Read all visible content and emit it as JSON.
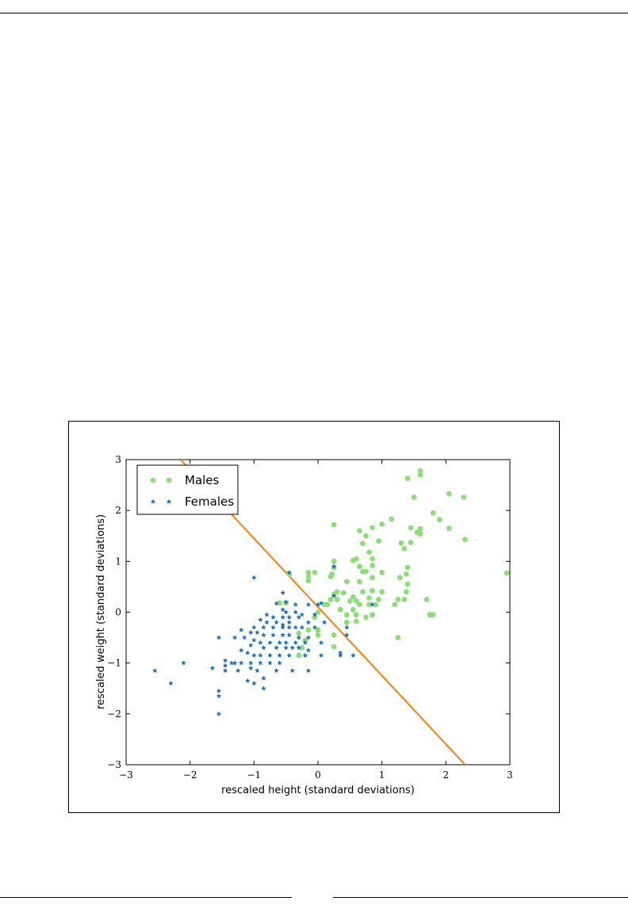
{
  "chart_data": {
    "type": "scatter",
    "xlabel": "rescaled height (standard deviations)",
    "ylabel": "rescaled weight (standard deviations)",
    "xlim": [
      -3,
      3
    ],
    "ylim": [
      -3,
      3
    ],
    "xticks": [
      "−3",
      "−2",
      "−1",
      "0",
      "1",
      "2",
      "3"
    ],
    "yticks": [
      "3",
      "2",
      "1",
      "0",
      "−1",
      "−2",
      "−3"
    ],
    "grid": false,
    "legend_position": "top-left",
    "series": [
      {
        "name": "Males",
        "marker": "circle",
        "color": "#8fdc7a",
        "points": [
          [
            1.6,
            2.78
          ],
          [
            1.6,
            2.7
          ],
          [
            1.4,
            2.63
          ],
          [
            1.5,
            2.26
          ],
          [
            2.05,
            2.33
          ],
          [
            2.28,
            2.26
          ],
          [
            1.8,
            1.95
          ],
          [
            1.9,
            1.82
          ],
          [
            1.15,
            1.83
          ],
          [
            1.0,
            1.73
          ],
          [
            1.45,
            1.66
          ],
          [
            1.6,
            1.64
          ],
          [
            1.55,
            1.57
          ],
          [
            1.6,
            1.54
          ],
          [
            2.05,
            1.65
          ],
          [
            2.3,
            1.43
          ],
          [
            0.25,
            1.72
          ],
          [
            0.65,
            1.6
          ],
          [
            0.85,
            1.66
          ],
          [
            0.75,
            1.5
          ],
          [
            0.95,
            1.4
          ],
          [
            0.7,
            1.35
          ],
          [
            1.3,
            1.36
          ],
          [
            1.45,
            1.37
          ],
          [
            1.35,
            1.25
          ],
          [
            0.55,
            1.02
          ],
          [
            0.6,
            1.05
          ],
          [
            0.85,
            1.05
          ],
          [
            0.8,
            1.18
          ],
          [
            0.65,
            0.9
          ],
          [
            0.7,
            0.8
          ],
          [
            0.75,
            0.8
          ],
          [
            1.0,
            0.78
          ],
          [
            1.4,
            0.88
          ],
          [
            1.38,
            0.75
          ],
          [
            1.28,
            0.68
          ],
          [
            0.25,
            1.0
          ],
          [
            0.25,
            0.88
          ],
          [
            0.22,
            0.75
          ],
          [
            0.85,
            0.92
          ],
          [
            0.85,
            0.68
          ],
          [
            0.45,
            0.6
          ],
          [
            0.65,
            0.6
          ],
          [
            1.4,
            0.55
          ],
          [
            2.95,
            0.77
          ],
          [
            -0.15,
            0.78
          ],
          [
            -0.15,
            0.7
          ],
          [
            -0.05,
            0.78
          ],
          [
            -0.45,
            0.75
          ],
          [
            -0.15,
            0.62
          ],
          [
            0.2,
            0.7
          ],
          [
            0.3,
            0.4
          ],
          [
            0.4,
            0.38
          ],
          [
            0.55,
            0.3
          ],
          [
            0.7,
            0.4
          ],
          [
            0.85,
            0.42
          ],
          [
            1.0,
            0.4
          ],
          [
            1.38,
            0.4
          ],
          [
            0.25,
            0.35
          ],
          [
            0.2,
            0.25
          ],
          [
            0.3,
            0.25
          ],
          [
            0.5,
            0.22
          ],
          [
            0.6,
            0.22
          ],
          [
            0.8,
            0.28
          ],
          [
            0.95,
            0.25
          ],
          [
            1.25,
            0.25
          ],
          [
            1.35,
            0.25
          ],
          [
            1.7,
            0.25
          ],
          [
            -0.6,
            0.18
          ],
          [
            -0.5,
            0.18
          ],
          [
            0.1,
            0.15
          ],
          [
            0.15,
            0.15
          ],
          [
            0.35,
            0.05
          ],
          [
            0.55,
            0.05
          ],
          [
            0.65,
            0.15
          ],
          [
            0.8,
            0.15
          ],
          [
            0.9,
            0.15
          ],
          [
            1.2,
            0.15
          ],
          [
            0.0,
            0.0
          ],
          [
            0.45,
            -0.05
          ],
          [
            0.6,
            -0.05
          ],
          [
            0.75,
            -0.1
          ],
          [
            0.85,
            -0.05
          ],
          [
            1.75,
            -0.05
          ],
          [
            -0.05,
            -0.1
          ],
          [
            0.45,
            -0.2
          ],
          [
            0.6,
            -0.18
          ],
          [
            1.8,
            -0.05
          ],
          [
            1.25,
            -0.5
          ],
          [
            -0.15,
            -0.35
          ],
          [
            0.0,
            -0.35
          ],
          [
            -0.3,
            -0.42
          ],
          [
            -0.2,
            -0.55
          ],
          [
            0.25,
            -0.45
          ],
          [
            0.0,
            -0.45
          ],
          [
            -0.25,
            -0.7
          ],
          [
            0.25,
            -0.68
          ],
          [
            -0.3,
            -0.85
          ]
        ]
      },
      {
        "name": "Females",
        "marker": "star",
        "color": "#1f6fb4",
        "points": [
          [
            -0.45,
            0.78
          ],
          [
            -1.0,
            0.68
          ],
          [
            -0.55,
            0.38
          ],
          [
            -0.65,
            0.17
          ],
          [
            -0.5,
            0.2
          ],
          [
            -0.35,
            0.15
          ],
          [
            -0.55,
            0.05
          ],
          [
            -0.5,
            0.0
          ],
          [
            -0.35,
            0.0
          ],
          [
            -0.25,
            -0.05
          ],
          [
            -0.8,
            -0.05
          ],
          [
            -0.7,
            -0.1
          ],
          [
            -0.55,
            -0.1
          ],
          [
            -0.45,
            -0.1
          ],
          [
            -0.3,
            -0.1
          ],
          [
            -0.05,
            -0.05
          ],
          [
            0.0,
            0.15
          ],
          [
            -0.15,
            0.15
          ],
          [
            -0.9,
            -0.15
          ],
          [
            -0.8,
            -0.2
          ],
          [
            -0.65,
            -0.2
          ],
          [
            -0.45,
            -0.2
          ],
          [
            -0.55,
            -0.25
          ],
          [
            -0.15,
            -0.2
          ],
          [
            0.1,
            -0.2
          ],
          [
            -1.0,
            -0.3
          ],
          [
            -0.85,
            -0.3
          ],
          [
            -0.7,
            -0.3
          ],
          [
            -0.55,
            -0.3
          ],
          [
            -0.45,
            -0.3
          ],
          [
            -0.35,
            -0.3
          ],
          [
            -0.25,
            -0.3
          ],
          [
            -0.05,
            -0.3
          ],
          [
            -1.2,
            -0.35
          ],
          [
            -1.05,
            -0.4
          ],
          [
            -0.95,
            -0.4
          ],
          [
            -0.85,
            -0.45
          ],
          [
            -0.7,
            -0.45
          ],
          [
            -0.55,
            -0.45
          ],
          [
            -0.45,
            -0.45
          ],
          [
            -0.3,
            -0.5
          ],
          [
            -0.15,
            -0.5
          ],
          [
            -1.55,
            -0.5
          ],
          [
            -1.3,
            -0.5
          ],
          [
            -1.15,
            -0.5
          ],
          [
            -1.0,
            -0.55
          ],
          [
            -0.9,
            -0.6
          ],
          [
            -0.75,
            -0.6
          ],
          [
            -0.6,
            -0.6
          ],
          [
            -0.5,
            -0.6
          ],
          [
            -0.35,
            -0.6
          ],
          [
            -0.2,
            -0.6
          ],
          [
            0.05,
            -0.6
          ],
          [
            -1.05,
            -0.65
          ],
          [
            -0.85,
            -0.7
          ],
          [
            -0.65,
            -0.7
          ],
          [
            -0.5,
            -0.7
          ],
          [
            -0.4,
            -0.7
          ],
          [
            -0.3,
            -0.7
          ],
          [
            -0.15,
            -0.75
          ],
          [
            -1.2,
            -0.75
          ],
          [
            -1.1,
            -0.8
          ],
          [
            -1.0,
            -0.85
          ],
          [
            -0.9,
            -0.85
          ],
          [
            -0.75,
            -0.85
          ],
          [
            -0.6,
            -0.85
          ],
          [
            -0.45,
            -0.85
          ],
          [
            -0.2,
            -0.85
          ],
          [
            0.05,
            -0.85
          ],
          [
            0.35,
            -0.8
          ],
          [
            0.35,
            -0.85
          ],
          [
            -1.45,
            -0.95
          ],
          [
            -1.3,
            -1.0
          ],
          [
            -1.2,
            -1.0
          ],
          [
            -1.05,
            -1.0
          ],
          [
            -0.9,
            -1.0
          ],
          [
            -0.75,
            -1.0
          ],
          [
            -0.6,
            -1.0
          ],
          [
            -1.45,
            -1.05
          ],
          [
            -1.35,
            -1.0
          ],
          [
            -1.65,
            -1.1
          ],
          [
            -1.45,
            -1.15
          ],
          [
            -1.25,
            -1.15
          ],
          [
            -1.05,
            -1.1
          ],
          [
            -0.95,
            -1.15
          ],
          [
            -0.65,
            -1.15
          ],
          [
            -0.4,
            -1.15
          ],
          [
            -0.15,
            -1.15
          ],
          [
            -2.55,
            -1.15
          ],
          [
            -2.1,
            -1.0
          ],
          [
            -1.55,
            -1.55
          ],
          [
            -1.55,
            -1.65
          ],
          [
            -2.3,
            -1.4
          ],
          [
            -1.1,
            -1.35
          ],
          [
            -1.0,
            -1.4
          ],
          [
            -0.85,
            -1.3
          ],
          [
            -0.85,
            -1.5
          ],
          [
            -1.55,
            -2.0
          ],
          [
            0.25,
            0.9
          ],
          [
            0.25,
            0.32
          ],
          [
            0.05,
            0.18
          ],
          [
            0.85,
            0.15
          ],
          [
            0.45,
            -0.3
          ],
          [
            0.55,
            -0.85
          ],
          [
            0.45,
            -0.45
          ]
        ]
      }
    ],
    "decision_boundary": {
      "color": "#f5891e",
      "points": [
        [
          -2.15,
          3.0
        ],
        [
          2.3,
          -3.0
        ]
      ]
    }
  }
}
